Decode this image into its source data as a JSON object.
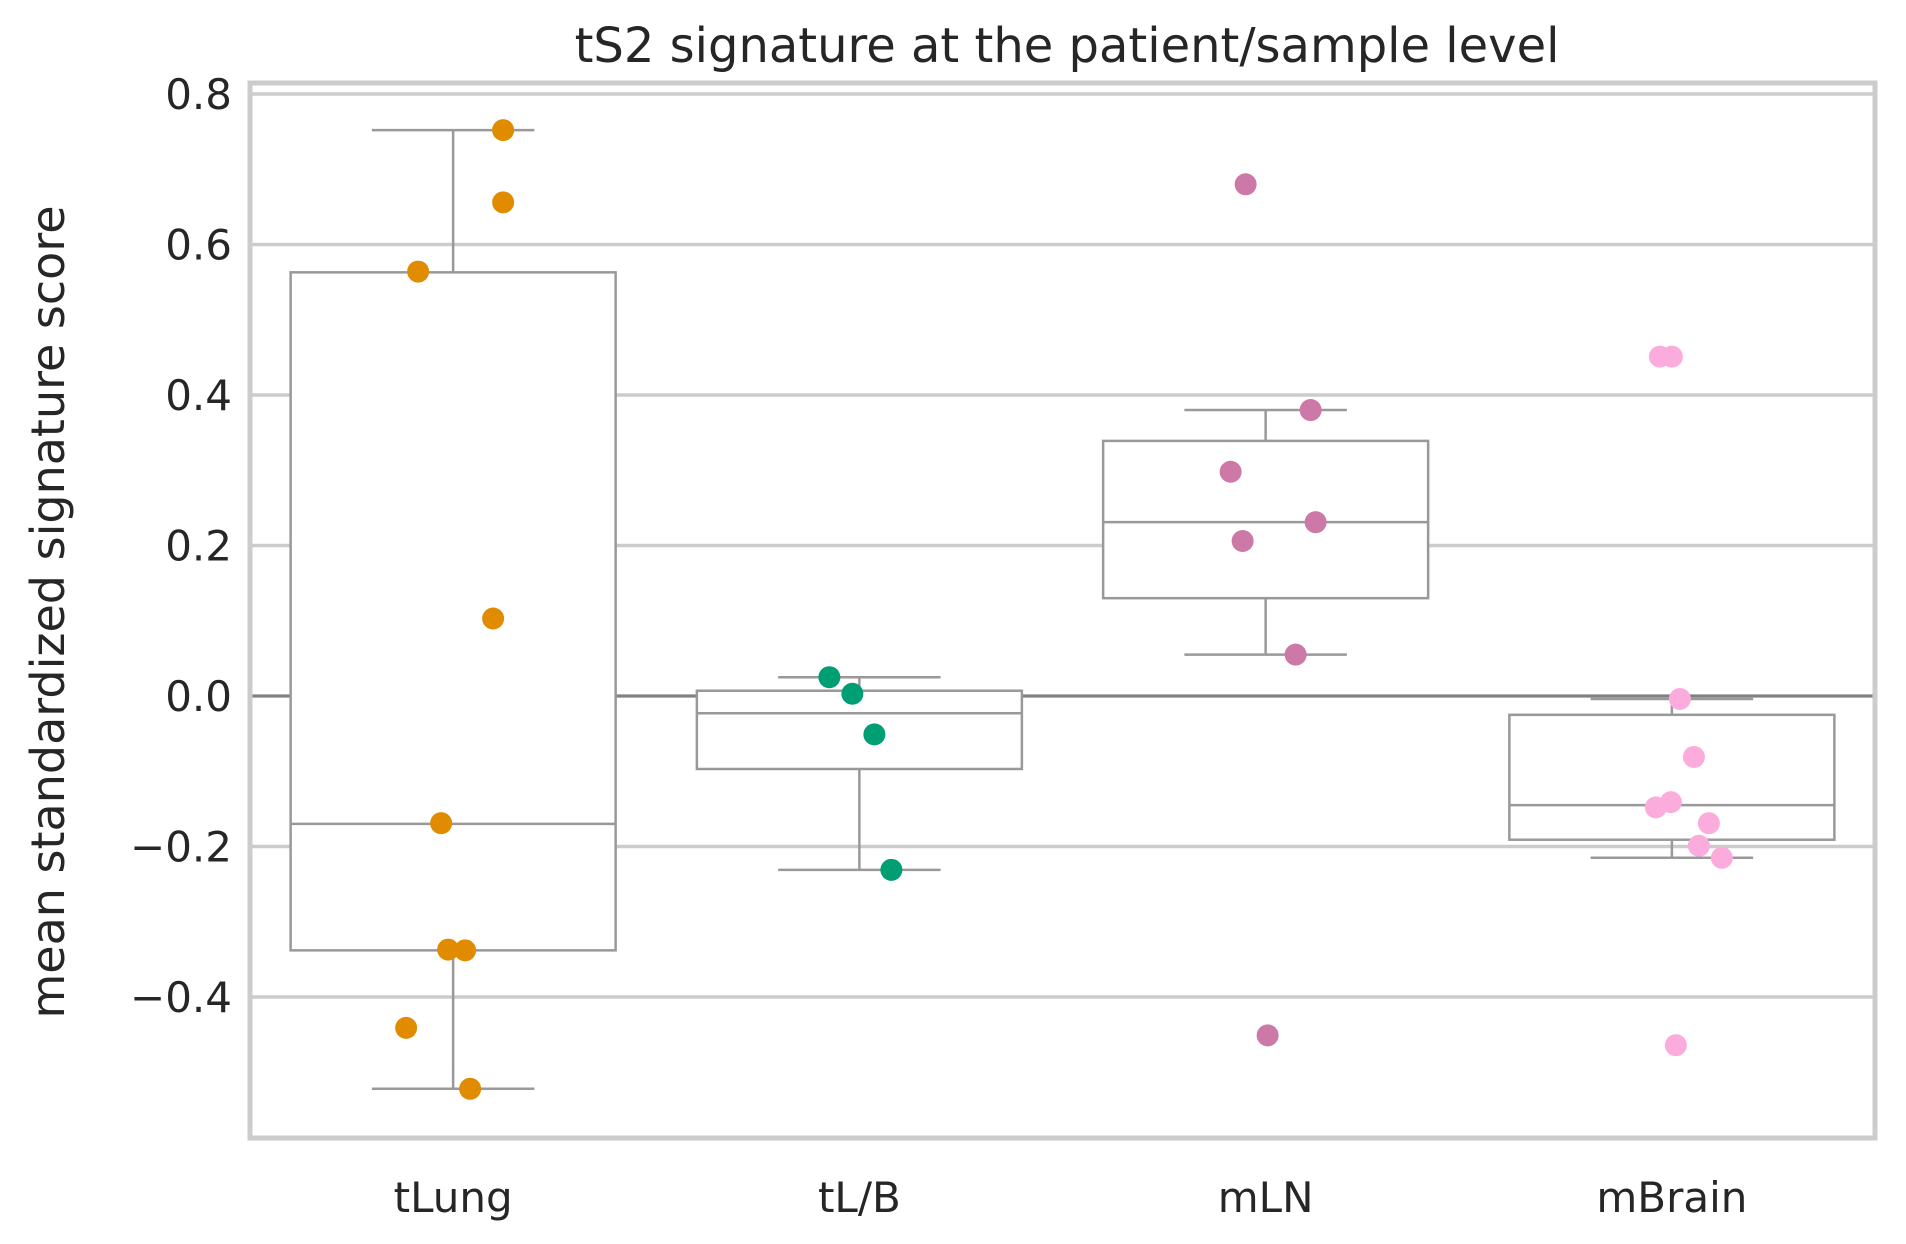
{
  "chart_data": {
    "type": "box",
    "title": "tS2 signature at the patient/sample level",
    "xlabel": "",
    "ylabel": "mean standardized signature score",
    "ylim": [
      -0.585,
      0.82
    ],
    "yticks": [
      -0.4,
      -0.2,
      0.0,
      0.2,
      0.4,
      0.6,
      0.8
    ],
    "ytick_labels": [
      "−0.4",
      "−0.2",
      "0.0",
      "0.2",
      "0.4",
      "0.6",
      "0.8"
    ],
    "grid": true,
    "reference_line": 0.0,
    "categories": [
      "tLung",
      "tL/B",
      "mLN",
      "mBrain"
    ],
    "colors": [
      "#e18b00",
      "#009e73",
      "#cc79a7",
      "#fbacdc"
    ],
    "boxes": [
      {
        "q1": -0.338,
        "median": -0.17,
        "q3": 0.563,
        "whisker_low": -0.522,
        "whisker_high": 0.752
      },
      {
        "q1": -0.097,
        "median": -0.023,
        "q3": 0.007,
        "whisker_low": -0.231,
        "whisker_high": 0.025
      },
      {
        "q1": 0.13,
        "median": 0.231,
        "q3": 0.339,
        "whisker_low": 0.055,
        "whisker_high": 0.38
      },
      {
        "q1": -0.191,
        "median": -0.145,
        "q3": -0.025,
        "whisker_low": -0.215,
        "whisker_high": -0.004
      }
    ],
    "points": [
      {
        "category": "tLung",
        "values": [
          0.752,
          0.656,
          0.564,
          0.103,
          -0.169,
          -0.337,
          -0.338,
          -0.441,
          -0.522
        ]
      },
      {
        "category": "tL/B",
        "values": [
          0.025,
          0.003,
          -0.051,
          -0.231
        ]
      },
      {
        "category": "mLN",
        "values": [
          0.68,
          0.38,
          0.298,
          0.231,
          0.206,
          0.055,
          -0.451
        ]
      },
      {
        "category": "mBrain",
        "values": [
          0.451,
          0.451,
          -0.004,
          -0.081,
          -0.141,
          -0.148,
          -0.169,
          -0.199,
          -0.215,
          -0.464
        ]
      }
    ]
  }
}
